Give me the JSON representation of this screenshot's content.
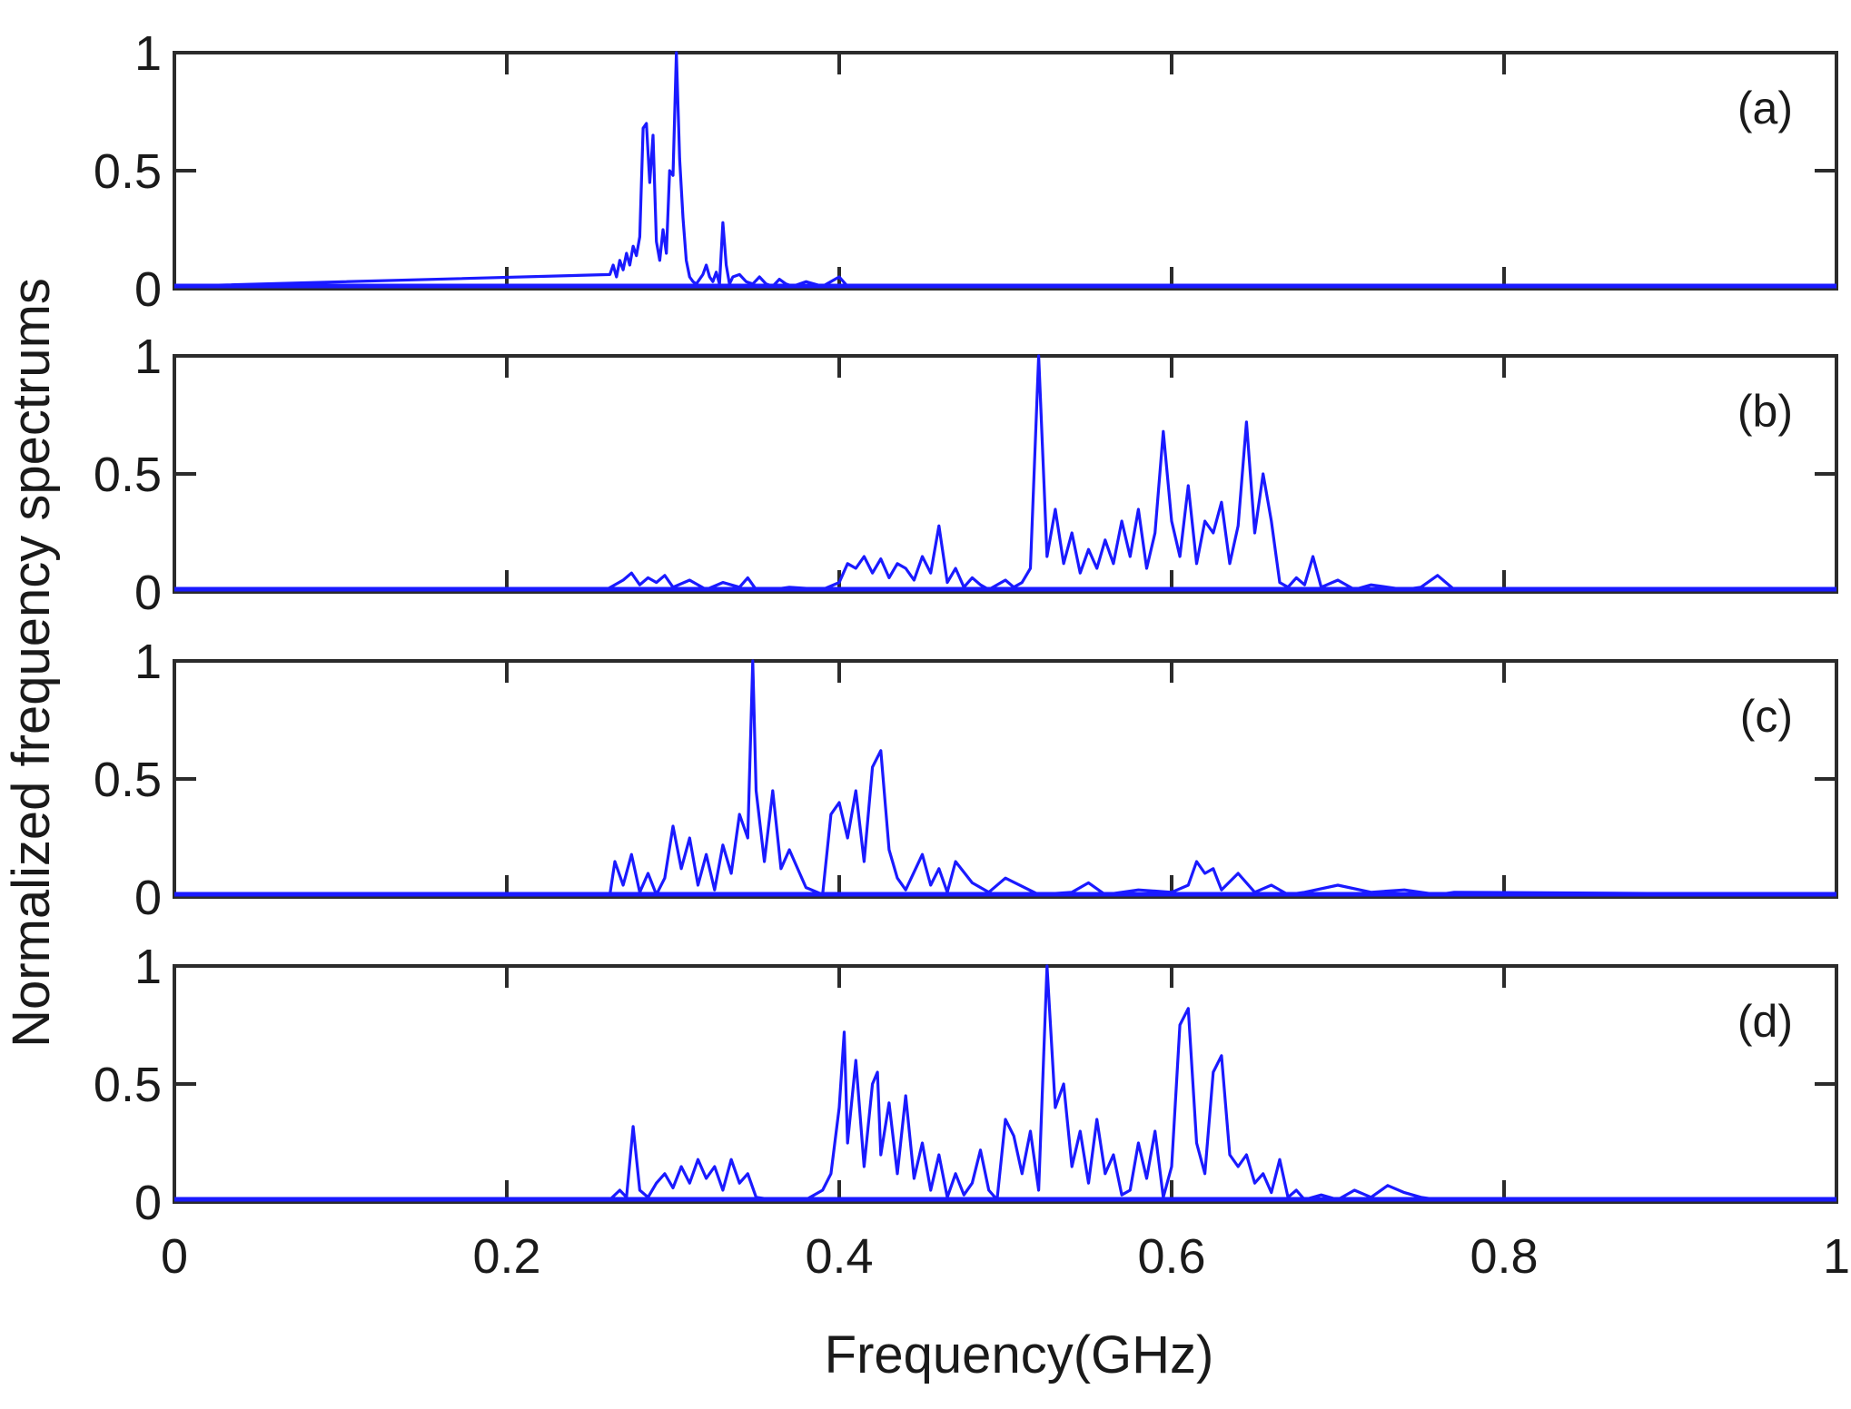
{
  "chart_data": {
    "type": "line",
    "ylabel": "Normalized frequency spectrums",
    "xlabel": "Frequency(GHz)",
    "line_color": "#1a1aff",
    "frame_color": "#2b2b2b",
    "xlim": [
      0,
      1
    ],
    "ylim": [
      0,
      1
    ],
    "xticks": [
      0,
      0.2,
      0.4,
      0.6,
      0.8,
      1
    ],
    "xtick_labels": [
      "0",
      "0.2",
      "0.4",
      "0.6",
      "0.8",
      "1"
    ],
    "yticks": [
      0,
      0.5,
      1
    ],
    "ytick_labels": [
      "0",
      "0.5",
      "1"
    ],
    "x_tick_labels_on_panel": "d",
    "panels": [
      {
        "id": "a",
        "label": "(a)",
        "x": [
          0,
          0.262,
          0.264,
          0.266,
          0.268,
          0.27,
          0.272,
          0.274,
          0.276,
          0.278,
          0.28,
          0.282,
          0.284,
          0.286,
          0.288,
          0.29,
          0.292,
          0.294,
          0.296,
          0.298,
          0.3,
          0.302,
          0.304,
          0.306,
          0.308,
          0.31,
          0.312,
          0.314,
          0.316,
          0.318,
          0.32,
          0.322,
          0.324,
          0.326,
          0.328,
          0.33,
          0.332,
          0.334,
          0.336,
          0.34,
          0.344,
          0.348,
          0.352,
          0.356,
          0.36,
          0.364,
          0.368,
          0.372,
          0.38,
          0.39,
          0.395,
          0.4,
          0.405,
          1
        ],
        "y": [
          0.01,
          0.06,
          0.1,
          0.05,
          0.12,
          0.08,
          0.15,
          0.1,
          0.18,
          0.14,
          0.22,
          0.68,
          0.7,
          0.45,
          0.65,
          0.2,
          0.12,
          0.25,
          0.15,
          0.5,
          0.48,
          1.0,
          0.55,
          0.3,
          0.12,
          0.05,
          0.03,
          0.02,
          0.04,
          0.06,
          0.1,
          0.05,
          0.03,
          0.07,
          0.02,
          0.28,
          0.1,
          0.02,
          0.05,
          0.06,
          0.03,
          0.02,
          0.05,
          0.02,
          0.01,
          0.04,
          0.02,
          0.01,
          0.03,
          0.01,
          0.03,
          0.05,
          0.01,
          0.01
        ]
      },
      {
        "id": "b",
        "label": "(b)",
        "x": [
          0,
          0.26,
          0.27,
          0.275,
          0.28,
          0.285,
          0.29,
          0.295,
          0.3,
          0.31,
          0.32,
          0.33,
          0.34,
          0.345,
          0.35,
          0.36,
          0.37,
          0.39,
          0.4,
          0.405,
          0.41,
          0.415,
          0.42,
          0.425,
          0.43,
          0.435,
          0.44,
          0.445,
          0.45,
          0.455,
          0.46,
          0.465,
          0.47,
          0.475,
          0.48,
          0.485,
          0.49,
          0.5,
          0.505,
          0.51,
          0.515,
          0.52,
          0.525,
          0.53,
          0.535,
          0.54,
          0.545,
          0.55,
          0.555,
          0.56,
          0.565,
          0.57,
          0.575,
          0.58,
          0.585,
          0.59,
          0.595,
          0.6,
          0.605,
          0.61,
          0.615,
          0.62,
          0.625,
          0.63,
          0.635,
          0.64,
          0.645,
          0.65,
          0.655,
          0.66,
          0.665,
          0.67,
          0.675,
          0.68,
          0.685,
          0.69,
          0.7,
          0.71,
          0.72,
          0.74,
          0.75,
          0.76,
          0.77,
          1
        ],
        "y": [
          0.01,
          0.01,
          0.05,
          0.08,
          0.03,
          0.06,
          0.04,
          0.07,
          0.02,
          0.05,
          0.01,
          0.04,
          0.02,
          0.06,
          0.01,
          0.01,
          0.02,
          0.01,
          0.04,
          0.12,
          0.1,
          0.15,
          0.08,
          0.14,
          0.06,
          0.12,
          0.1,
          0.05,
          0.15,
          0.08,
          0.28,
          0.04,
          0.1,
          0.02,
          0.06,
          0.03,
          0.01,
          0.05,
          0.02,
          0.04,
          0.1,
          1.0,
          0.15,
          0.35,
          0.12,
          0.25,
          0.08,
          0.18,
          0.1,
          0.22,
          0.12,
          0.3,
          0.15,
          0.35,
          0.1,
          0.25,
          0.68,
          0.3,
          0.15,
          0.45,
          0.12,
          0.3,
          0.25,
          0.38,
          0.12,
          0.28,
          0.72,
          0.25,
          0.5,
          0.3,
          0.04,
          0.02,
          0.06,
          0.03,
          0.15,
          0.02,
          0.05,
          0.01,
          0.03,
          0.01,
          0.02,
          0.07,
          0.01,
          0.01
        ]
      },
      {
        "id": "c",
        "label": "(c)",
        "x": [
          0,
          0.262,
          0.265,
          0.27,
          0.275,
          0.28,
          0.285,
          0.29,
          0.295,
          0.3,
          0.305,
          0.31,
          0.315,
          0.32,
          0.325,
          0.33,
          0.335,
          0.34,
          0.345,
          0.348,
          0.35,
          0.355,
          0.36,
          0.365,
          0.37,
          0.38,
          0.39,
          0.395,
          0.4,
          0.405,
          0.41,
          0.415,
          0.42,
          0.425,
          0.43,
          0.435,
          0.44,
          0.45,
          0.455,
          0.46,
          0.465,
          0.47,
          0.48,
          0.49,
          0.5,
          0.52,
          0.54,
          0.55,
          0.56,
          0.58,
          0.6,
          0.61,
          0.615,
          0.62,
          0.625,
          0.63,
          0.64,
          0.65,
          0.66,
          0.67,
          0.68,
          0.7,
          0.72,
          0.74,
          0.76,
          0.77,
          1
        ],
        "y": [
          0.01,
          0.01,
          0.15,
          0.05,
          0.18,
          0.02,
          0.1,
          0.01,
          0.08,
          0.3,
          0.12,
          0.25,
          0.05,
          0.18,
          0.03,
          0.22,
          0.1,
          0.35,
          0.25,
          1.0,
          0.45,
          0.15,
          0.45,
          0.12,
          0.2,
          0.04,
          0.01,
          0.35,
          0.4,
          0.25,
          0.45,
          0.15,
          0.55,
          0.62,
          0.2,
          0.08,
          0.03,
          0.18,
          0.05,
          0.12,
          0.02,
          0.15,
          0.06,
          0.02,
          0.08,
          0.01,
          0.02,
          0.06,
          0.01,
          0.03,
          0.02,
          0.05,
          0.15,
          0.1,
          0.12,
          0.03,
          0.1,
          0.02,
          0.05,
          0.01,
          0.02,
          0.05,
          0.02,
          0.03,
          0.01,
          0.02,
          0.01
        ]
      },
      {
        "id": "d",
        "label": "(d)",
        "x": [
          0,
          0.262,
          0.268,
          0.272,
          0.276,
          0.28,
          0.285,
          0.29,
          0.295,
          0.3,
          0.305,
          0.31,
          0.315,
          0.32,
          0.325,
          0.33,
          0.335,
          0.34,
          0.345,
          0.35,
          0.36,
          0.38,
          0.39,
          0.395,
          0.4,
          0.403,
          0.405,
          0.41,
          0.415,
          0.42,
          0.423,
          0.425,
          0.43,
          0.435,
          0.44,
          0.445,
          0.45,
          0.455,
          0.46,
          0.465,
          0.47,
          0.475,
          0.48,
          0.485,
          0.49,
          0.495,
          0.5,
          0.505,
          0.51,
          0.515,
          0.52,
          0.525,
          0.53,
          0.535,
          0.54,
          0.545,
          0.55,
          0.555,
          0.56,
          0.565,
          0.57,
          0.575,
          0.58,
          0.585,
          0.59,
          0.595,
          0.6,
          0.605,
          0.61,
          0.615,
          0.62,
          0.625,
          0.63,
          0.635,
          0.64,
          0.645,
          0.65,
          0.655,
          0.66,
          0.665,
          0.67,
          0.675,
          0.68,
          0.69,
          0.7,
          0.71,
          0.72,
          0.73,
          0.74,
          0.75,
          0.76,
          1
        ],
        "y": [
          0.01,
          0.01,
          0.05,
          0.02,
          0.32,
          0.05,
          0.02,
          0.08,
          0.12,
          0.06,
          0.15,
          0.08,
          0.18,
          0.1,
          0.15,
          0.05,
          0.18,
          0.08,
          0.12,
          0.02,
          0.01,
          0.01,
          0.05,
          0.12,
          0.4,
          0.72,
          0.25,
          0.6,
          0.15,
          0.5,
          0.55,
          0.2,
          0.42,
          0.12,
          0.45,
          0.1,
          0.25,
          0.05,
          0.2,
          0.02,
          0.12,
          0.03,
          0.08,
          0.22,
          0.05,
          0.01,
          0.35,
          0.28,
          0.12,
          0.3,
          0.05,
          1.0,
          0.4,
          0.5,
          0.15,
          0.3,
          0.08,
          0.35,
          0.12,
          0.2,
          0.03,
          0.05,
          0.25,
          0.1,
          0.3,
          0.02,
          0.15,
          0.75,
          0.82,
          0.25,
          0.12,
          0.55,
          0.62,
          0.2,
          0.15,
          0.2,
          0.08,
          0.12,
          0.04,
          0.18,
          0.02,
          0.05,
          0.01,
          0.03,
          0.01,
          0.05,
          0.02,
          0.07,
          0.04,
          0.02,
          0.01,
          0.01
        ]
      }
    ]
  }
}
